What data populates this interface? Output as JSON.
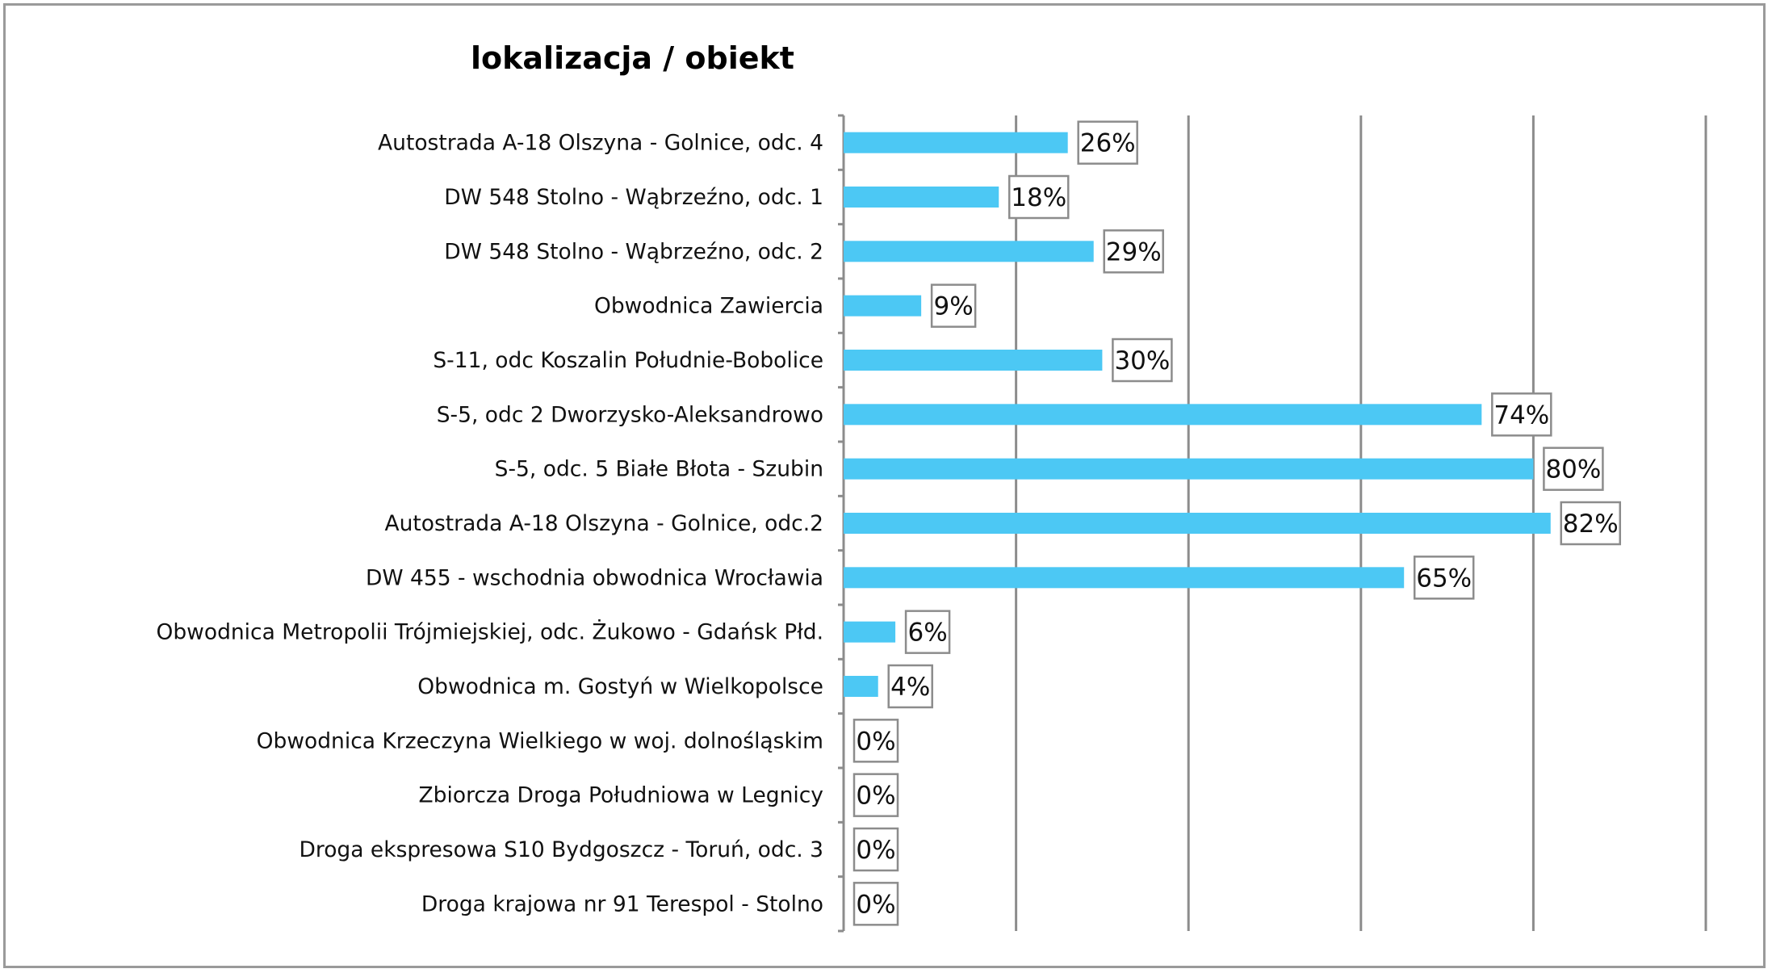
{
  "chart_data": {
    "type": "bar",
    "orientation": "horizontal",
    "title": "lokalizacja / obiekt",
    "categories": [
      "Autostrada A-18 Olszyna - Golnice, odc. 4",
      "DW 548 Stolno - Wąbrzeźno, odc. 1",
      "DW 548 Stolno - Wąbrzeźno, odc. 2",
      "Obwodnica Zawiercia",
      "S-11, odc Koszalin Południe-Bobolice",
      "S-5, odc 2 Dworzysko-Aleksandrowo",
      "S-5, odc. 5 Białe Błota - Szubin",
      "Autostrada A-18 Olszyna - Golnice, odc.2",
      "DW 455 - wschodnia obwodnica Wrocławia",
      "Obwodnica Metropolii Trójmiejskiej, odc. Żukowo - Gdańsk Płd.",
      "Obwodnica m. Gostyń w Wielkopolsce",
      "Obwodnica  Krzeczyna Wielkiego w woj. dolnośląskim",
      "Zbiorcza Droga Południowa w Legnicy",
      "Droga ekspresowa S10 Bydgoszcz - Toruń, odc. 3",
      "Droga krajowa nr 91 Terespol - Stolno"
    ],
    "values": [
      26,
      18,
      29,
      9,
      30,
      74,
      80,
      82,
      65,
      6,
      4,
      0,
      0,
      0,
      0
    ],
    "data_labels": [
      "26%",
      "18%",
      "29%",
      "9%",
      "30%",
      "74%",
      "80%",
      "82%",
      "65%",
      "6%",
      "4%",
      "0%",
      "0%",
      "0%",
      "0%"
    ],
    "xlim": [
      0,
      100
    ],
    "gridlines": [
      0,
      20,
      40,
      60,
      80,
      100
    ],
    "grid": true,
    "x_tick_labels_visible": false,
    "legend": "none",
    "bar_color": "#4cc8f4",
    "grid_color": "#8c8c8c",
    "label_box_color": "#8c8c8c"
  }
}
